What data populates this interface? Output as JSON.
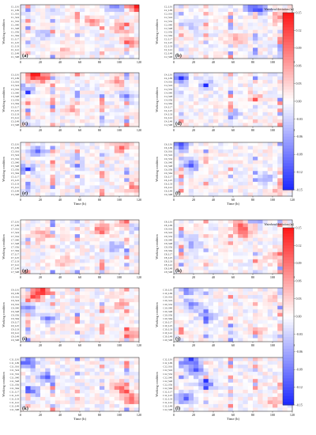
{
  "chart_data": {
    "type": "heatmap",
    "panel_labels": [
      "(a)",
      "(b)",
      "(c)",
      "(d)",
      "(e)",
      "(f)",
      "(g)",
      "(h)",
      "(i)",
      "(j)",
      "(k)",
      "(l)"
    ],
    "ylabel": "Working condition",
    "xlabel": "Time (h)",
    "xlim": [
      0,
      120
    ],
    "x_ticks": [
      0,
      20,
      40,
      60,
      80,
      100,
      120
    ],
    "colorbar": {
      "label": "Waterhead deviation (m)",
      "min": -0.15,
      "max": 0.15,
      "ticks": [
        "0.15",
        "0.12",
        "0.09",
        "0.06",
        "0.03",
        "0.00",
        "-0.03",
        "-0.06",
        "-0.09",
        "-0.12",
        "-0.15"
      ],
      "low_color": "#1f2bff",
      "mid_color": "#ffffff",
      "high_color": "#ff1a1a"
    },
    "row_labels": [
      [
        "C1_L01",
        "C1_L09",
        "C1_S16",
        "C1_S24",
        "C1_S32",
        "C1_S40",
        "C1_S48",
        "C1_S56",
        "C1_S64",
        "C1_L17",
        "C1_L25",
        "C1_L33",
        "C1_L41",
        "C1_L49",
        "C1_S08"
      ],
      [
        "C2_L01",
        "C2_L09",
        "C2_S16",
        "C2_S24",
        "C2_S32",
        "C2_S40",
        "C2_S48",
        "C2_S56",
        "C2_S64",
        "C2_L17",
        "C2_L25",
        "C2_L33",
        "C2_L41",
        "C2_L49",
        "C2_S08"
      ],
      [
        "C3_L01",
        "C3_L09",
        "C3_S16",
        "C3_S24",
        "C3_S32",
        "C3_S40",
        "C3_S48",
        "C3_S56",
        "C3_S64",
        "C3_L17",
        "C3_L25",
        "C3_L33",
        "C3_L41",
        "C3_L49",
        "C3_S08"
      ],
      [
        "C4_L01",
        "C4_L09",
        "C4_S16",
        "C4_S24",
        "C4_S32",
        "C4_S40",
        "C4_S48",
        "C4_S56",
        "C4_S64",
        "C4_L17",
        "C4_L25",
        "C4_L33",
        "C4_L41",
        "C4_L49",
        "C4_S08"
      ],
      [
        "C5_L01",
        "C5_L09",
        "C5_S16",
        "C5_S24",
        "C5_S32",
        "C5_S40",
        "C5_S48",
        "C5_S56",
        "C5_S64",
        "C5_L17",
        "C5_L25",
        "C5_L33",
        "C5_L41",
        "C5_L49",
        "C5_S08"
      ],
      [
        "C6_L01",
        "C6_L09",
        "C6_S16",
        "C6_S24",
        "C6_S32",
        "C6_S40",
        "C6_S48",
        "C6_S56",
        "C6_S64",
        "C6_L17",
        "C6_L25",
        "C6_L33",
        "C6_L41",
        "C6_L49",
        "C6_S08"
      ],
      [
        "C7_L01",
        "C7_L09",
        "C7_S16",
        "C7_S24",
        "C7_S32",
        "C7_S40",
        "C7_S48",
        "C7_S56",
        "C7_S64",
        "C7_L17",
        "C7_L25",
        "C7_L33",
        "C7_L41",
        "C7_L49",
        "C7_S08"
      ],
      [
        "C8_L01",
        "C8_L09",
        "C8_S16",
        "C8_S24",
        "C8_S32",
        "C8_S40",
        "C8_S48",
        "C8_S56",
        "C8_S64",
        "C8_L17",
        "C8_L25",
        "C8_L33",
        "C8_L41",
        "C8_L49",
        "C8_S08"
      ],
      [
        "C9_L01",
        "C9_L09",
        "C9_S16",
        "C9_S24",
        "C9_S32",
        "C9_S40",
        "C9_S48",
        "C9_S56",
        "C9_S64",
        "C9_L17",
        "C9_L25",
        "C9_L33",
        "C9_L41",
        "C9_L49",
        "C9_S08"
      ],
      [
        "C10_L01",
        "C10_L09",
        "C10_S16",
        "C10_S24",
        "C10_S32",
        "C10_S40",
        "C10_S48",
        "C10_S56",
        "C10_S64",
        "C10_L17",
        "C10_L25",
        "C10_L33",
        "C10_L41",
        "C10_L49",
        "C10_S08"
      ],
      [
        "C11_L01",
        "C11_L09",
        "C11_S16",
        "C11_S24",
        "C11_S32",
        "C11_S40",
        "C11_S48",
        "C11_S56",
        "C11_S64",
        "C11_L17",
        "C11_L25",
        "C11_L33",
        "C11_L41",
        "C11_L49",
        "C11_S08"
      ],
      [
        "C12_L01",
        "C12_L09",
        "C12_S16",
        "C12_S24",
        "C12_S32",
        "C12_S40",
        "C12_S48",
        "C12_S56",
        "C12_S64",
        "C12_L17",
        "C12_L25",
        "C12_L33",
        "C12_L41",
        "C12_L49",
        "C12_S08"
      ]
    ],
    "time_bins": [
      0,
      5,
      10,
      15,
      20,
      25,
      30,
      35,
      40,
      45,
      50,
      55,
      60,
      65,
      70,
      75,
      80,
      85,
      90,
      95,
      100,
      105,
      110,
      115
    ],
    "hotspots": [
      [
        {
          "t": 95,
          "r": 0,
          "v": -0.1
        },
        {
          "t": 115,
          "r": 0,
          "v": 0.14
        },
        {
          "t": 70,
          "r": 4,
          "v": 0.06
        },
        {
          "t": 100,
          "r": 6,
          "v": 0.08
        },
        {
          "t": 20,
          "r": 8,
          "v": -0.05
        },
        {
          "t": 110,
          "r": 10,
          "v": 0.07
        },
        {
          "t": 40,
          "r": 12,
          "v": 0.04
        }
      ],
      [
        {
          "t": 75,
          "r": 0,
          "v": -0.08
        },
        {
          "t": 85,
          "r": 1,
          "v": -0.09
        },
        {
          "t": 105,
          "r": 3,
          "v": 0.08
        },
        {
          "t": 15,
          "r": 5,
          "v": -0.05
        },
        {
          "t": 60,
          "r": 9,
          "v": 0.05
        },
        {
          "t": 110,
          "r": 13,
          "v": -0.04
        }
      ],
      [
        {
          "t": 10,
          "r": 0,
          "v": 0.13
        },
        {
          "t": 20,
          "r": 1,
          "v": 0.1
        },
        {
          "t": 5,
          "r": 4,
          "v": -0.09
        },
        {
          "t": 95,
          "r": 2,
          "v": 0.07
        },
        {
          "t": 105,
          "r": 6,
          "v": -0.06
        },
        {
          "t": 50,
          "r": 10,
          "v": 0.05
        }
      ],
      [
        {
          "t": 5,
          "r": 1,
          "v": -0.11
        },
        {
          "t": 30,
          "r": 3,
          "v": -0.07
        },
        {
          "t": 80,
          "r": 6,
          "v": 0.05
        },
        {
          "t": 110,
          "r": 2,
          "v": -0.06
        },
        {
          "t": 60,
          "r": 11,
          "v": -0.05
        }
      ],
      [
        {
          "t": 15,
          "r": 2,
          "v": -0.1
        },
        {
          "t": 5,
          "r": 7,
          "v": -0.09
        },
        {
          "t": 100,
          "r": 1,
          "v": 0.09
        },
        {
          "t": 110,
          "r": 12,
          "v": 0.08
        },
        {
          "t": 55,
          "r": 5,
          "v": -0.05
        }
      ],
      [
        {
          "t": 5,
          "r": 0,
          "v": -0.12
        },
        {
          "t": 15,
          "r": 6,
          "v": -0.1
        },
        {
          "t": 90,
          "r": 10,
          "v": -0.07
        },
        {
          "t": 105,
          "r": 13,
          "v": 0.05
        }
      ],
      [
        {
          "t": 105,
          "r": 0,
          "v": 0.12
        },
        {
          "t": 80,
          "r": 2,
          "v": 0.09
        },
        {
          "t": 110,
          "r": 1,
          "v": -0.08
        },
        {
          "t": 20,
          "r": 4,
          "v": 0.06
        },
        {
          "t": 95,
          "r": 7,
          "v": -0.07
        },
        {
          "t": 40,
          "r": 11,
          "v": 0.05
        }
      ],
      [
        {
          "t": 65,
          "r": 1,
          "v": 0.1
        },
        {
          "t": 70,
          "r": 3,
          "v": 0.08
        },
        {
          "t": 80,
          "r": 0,
          "v": -0.07
        },
        {
          "t": 15,
          "r": 6,
          "v": -0.06
        },
        {
          "t": 100,
          "r": 10,
          "v": 0.05
        }
      ],
      [
        {
          "t": 20,
          "r": 0,
          "v": 0.14
        },
        {
          "t": 10,
          "r": 2,
          "v": 0.1
        },
        {
          "t": 5,
          "r": 5,
          "v": -0.1
        },
        {
          "t": 25,
          "r": 8,
          "v": -0.08
        },
        {
          "t": 100,
          "r": 4,
          "v": 0.06
        },
        {
          "t": 110,
          "r": 12,
          "v": 0.07
        }
      ],
      [
        {
          "t": 10,
          "r": 0,
          "v": -0.1
        },
        {
          "t": 15,
          "r": 4,
          "v": -0.09
        },
        {
          "t": 30,
          "r": 7,
          "v": -0.07
        },
        {
          "t": 105,
          "r": 2,
          "v": 0.06
        },
        {
          "t": 80,
          "r": 11,
          "v": 0.05
        }
      ],
      [
        {
          "t": 5,
          "r": 1,
          "v": -0.12
        },
        {
          "t": 25,
          "r": 5,
          "v": -0.1
        },
        {
          "t": 10,
          "r": 9,
          "v": -0.08
        },
        {
          "t": 100,
          "r": 8,
          "v": 0.09
        },
        {
          "t": 110,
          "r": 11,
          "v": 0.1
        }
      ],
      [
        {
          "t": 15,
          "r": 0,
          "v": -0.14
        },
        {
          "t": 20,
          "r": 3,
          "v": -0.11
        },
        {
          "t": 30,
          "r": 7,
          "v": -0.09
        },
        {
          "t": 10,
          "r": 11,
          "v": -0.1
        },
        {
          "t": 100,
          "r": 12,
          "v": 0.05
        }
      ]
    ]
  }
}
